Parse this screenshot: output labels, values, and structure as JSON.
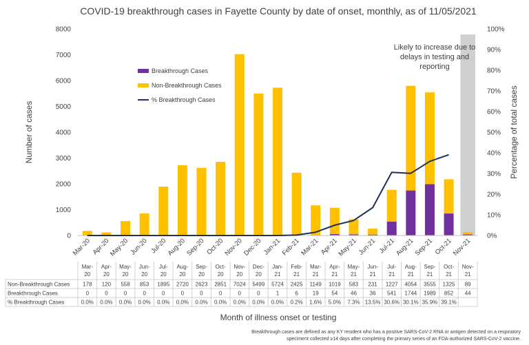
{
  "chart_data": {
    "type": "bar",
    "title": "COVID-19 breakthrough cases in Fayette County by date of onset, monthly, as of 11/05/2021",
    "xlabel": "Month of illness onset or testing",
    "ylabel": "Number of cases",
    "y2label": "Percentage of total cases",
    "ylim": [
      0,
      8000
    ],
    "y2lim": [
      0,
      100
    ],
    "y_ticks": [
      "0",
      "1000",
      "2000",
      "3000",
      "4000",
      "5000",
      "6000",
      "7000",
      "8000"
    ],
    "y2_ticks": [
      "0%",
      "10%",
      "20%",
      "30%",
      "40%",
      "50%",
      "60%",
      "70%",
      "80%",
      "90%",
      "100%"
    ],
    "categories": [
      "Mar-20",
      "Apr-20",
      "May-20",
      "Jun-20",
      "Jul-20",
      "Aug-20",
      "Sep-20",
      "Oct-20",
      "Nov-20",
      "Dec-20",
      "Jan-21",
      "Feb-21",
      "Mar-21",
      "Apr-21",
      "May-21",
      "Jun-21",
      "Jul-21",
      "Aug-21",
      "Sep-21",
      "Oct-21",
      "Nov-21"
    ],
    "table_categories": [
      [
        "Mar-",
        "20"
      ],
      [
        "Apr-",
        "20"
      ],
      [
        "May-",
        "20"
      ],
      [
        "Jun-",
        "20"
      ],
      [
        "Jul-",
        "20"
      ],
      [
        "Aug-",
        "20"
      ],
      [
        "Sep-",
        "20"
      ],
      [
        "Oct-",
        "20"
      ],
      [
        "Nov-",
        "20"
      ],
      [
        "Dec-",
        "20"
      ],
      [
        "Jan-",
        "21"
      ],
      [
        "Feb-",
        "21"
      ],
      [
        "Mar-",
        "21"
      ],
      [
        "Apr-",
        "21"
      ],
      [
        "May-",
        "21"
      ],
      [
        "Jun-",
        "21"
      ],
      [
        "Jul-",
        "21"
      ],
      [
        "Aug-",
        "21"
      ],
      [
        "Sep-",
        "21"
      ],
      [
        "Oct-",
        "21"
      ],
      [
        "Nov-",
        "21"
      ]
    ],
    "series": [
      {
        "name": "Breakthrough Cases",
        "type": "bar",
        "color": "#7030A0",
        "values": [
          0,
          0,
          0,
          0,
          0,
          0,
          0,
          0,
          0,
          0,
          1,
          6,
          19,
          54,
          46,
          36,
          541,
          1744,
          1989,
          852,
          44
        ]
      },
      {
        "name": "Non-Breakthrough Cases",
        "type": "bar",
        "color": "#FFC000",
        "values": [
          178,
          120,
          558,
          853,
          1895,
          2720,
          2623,
          2851,
          7024,
          5499,
          5724,
          2425,
          1149,
          1019,
          583,
          231,
          1227,
          4054,
          3555,
          1325,
          89
        ]
      },
      {
        "name": "% Breakthrough Cases",
        "type": "line",
        "axis": "secondary",
        "color": "#1F2F5A",
        "values": [
          0.0,
          0.0,
          0.0,
          0.0,
          0.0,
          0.0,
          0.0,
          0.0,
          0.0,
          0.0,
          0.0,
          0.2,
          1.6,
          5.0,
          7.3,
          13.5,
          30.6,
          30.1,
          35.9,
          39.1,
          null
        ]
      }
    ],
    "table": {
      "rows": [
        {
          "label": "Non-Breakthrough Cases",
          "values": [
            "178",
            "120",
            "558",
            "853",
            "1895",
            "2720",
            "2623",
            "2851",
            "7024",
            "5499",
            "5724",
            "2425",
            "1149",
            "1019",
            "583",
            "231",
            "1227",
            "4054",
            "3555",
            "1325",
            "89"
          ]
        },
        {
          "label": "Breakthrough Cases",
          "values": [
            "0",
            "0",
            "0",
            "0",
            "0",
            "0",
            "0",
            "0",
            "0",
            "0",
            "1",
            "6",
            "19",
            "54",
            "46",
            "36",
            "541",
            "1744",
            "1989",
            "852",
            "44"
          ]
        },
        {
          "label": "% Breakthrough Cases",
          "values": [
            "0.0%",
            "0.0%",
            "0.0%",
            "0.0%",
            "0.0%",
            "0.0%",
            "0.0%",
            "0.0%",
            "0.0%",
            "0.0%",
            "0.0%",
            "0.2%",
            "1.6%",
            "5.0%",
            "7.3%",
            "13.5%",
            "30.6%",
            "30.1%",
            "35.9%",
            "39.1%",
            ""
          ]
        }
      ]
    },
    "shaded_period": "Nov-21",
    "annotation": [
      "Likely to increase due to",
      "delays in testing and",
      "reporting"
    ],
    "footnote": [
      "Breakthrough cases are defined as any KY resident who has a positive SARS-CoV-2 RNA or antigen detected on a respiratory",
      "speciment collected ≥14 days after completing the primary series of an FDA-authorized SARS-CoV-2 vaccine."
    ],
    "legend_position": "upper-left-inside",
    "grid": false
  }
}
